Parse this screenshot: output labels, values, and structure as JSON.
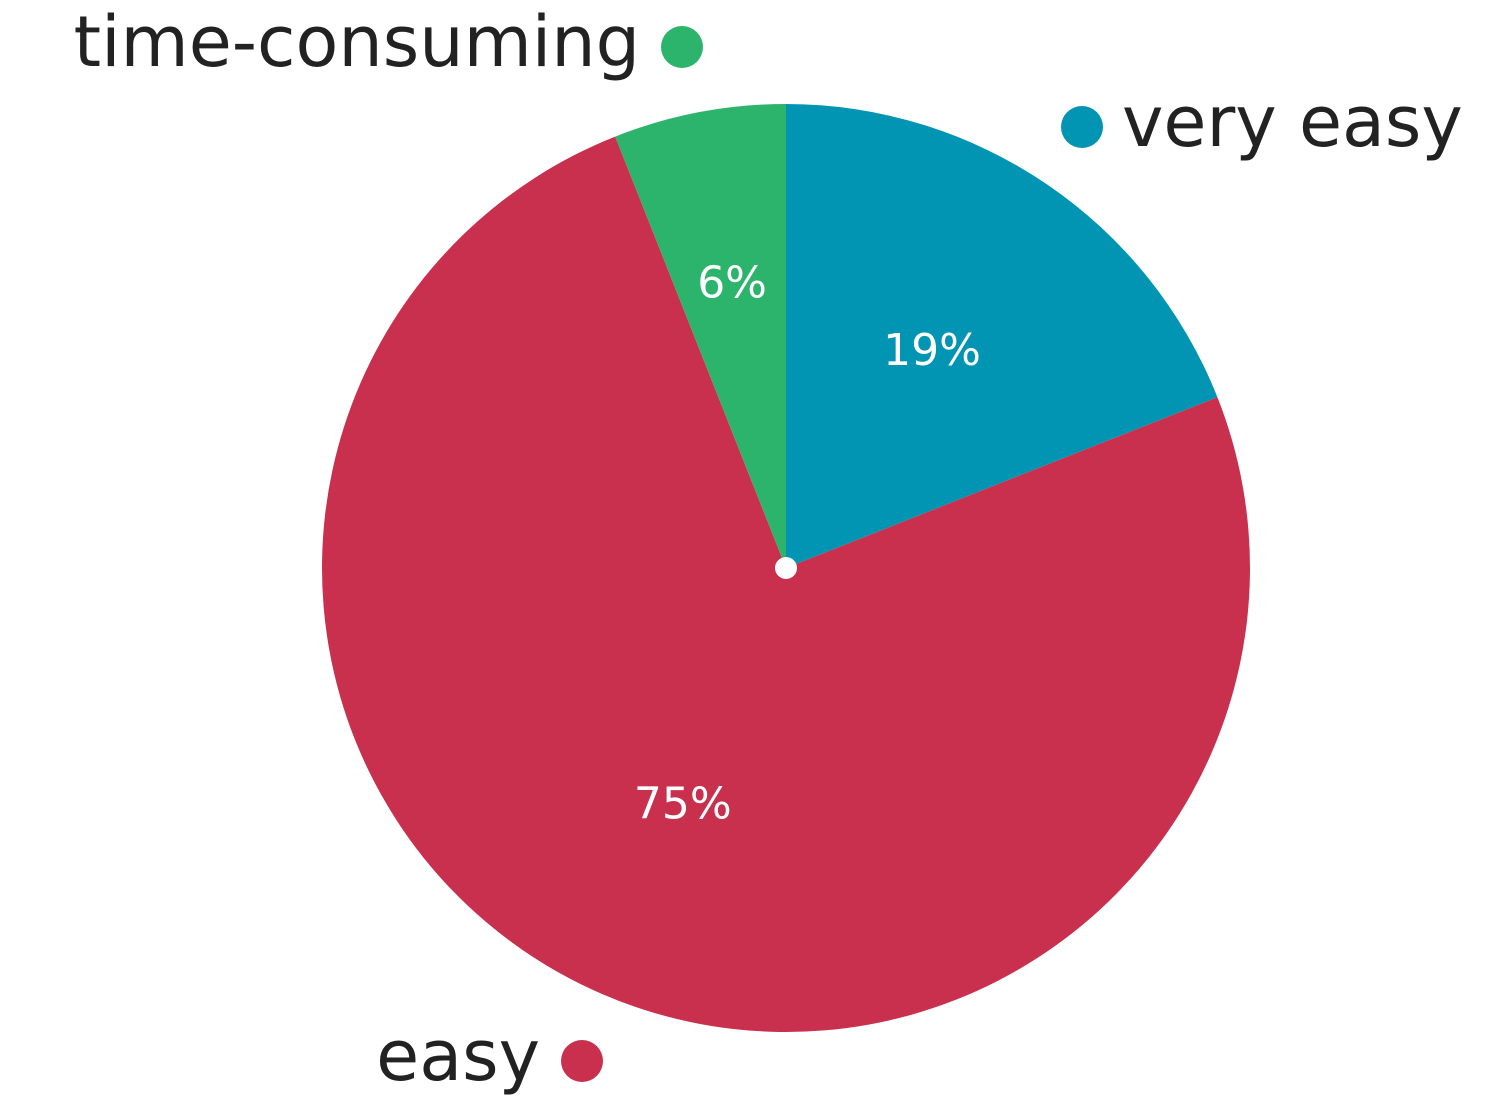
{
  "chart_data": {
    "type": "pie",
    "slices": [
      {
        "label": "very easy",
        "value": 19,
        "value_label": "19%",
        "color": "#0294B3"
      },
      {
        "label": "easy",
        "value": 75,
        "value_label": "75%",
        "color": "#C9304D"
      },
      {
        "label": "time-consuming",
        "value": 6,
        "value_label": "6%",
        "color": "#2DB46C"
      }
    ],
    "start_angle": "12 o'clock",
    "direction": "clockwise",
    "legend": "outside labels next to slices"
  }
}
